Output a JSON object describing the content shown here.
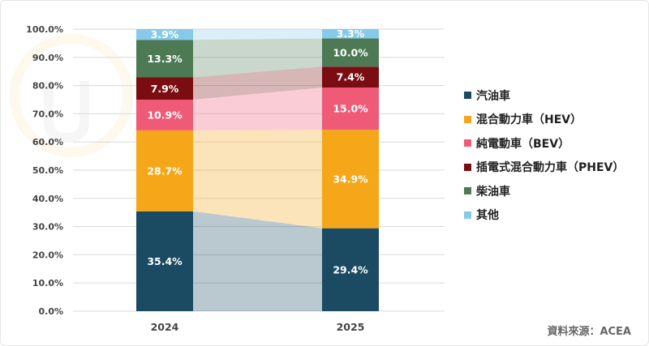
{
  "chart_data": {
    "type": "bar",
    "stacked": true,
    "percent": true,
    "categories": [
      "2024",
      "2025"
    ],
    "series": [
      {
        "name": "汽油車",
        "color": "#1b4a63",
        "values": [
          35.4,
          29.4
        ],
        "labels": [
          "35.4%",
          "29.4%"
        ]
      },
      {
        "name": "混合動力車（HEV）",
        "color": "#f5a719",
        "values": [
          28.7,
          34.9
        ],
        "labels": [
          "28.7%",
          "34.9%"
        ]
      },
      {
        "name": "純電動車（BEV）",
        "color": "#ef5a77",
        "values": [
          10.9,
          15.0
        ],
        "labels": [
          "10.9%",
          "15.0%"
        ]
      },
      {
        "name": "插電式混合動力車（PHEV）",
        "color": "#7b0d12",
        "values": [
          7.9,
          7.4
        ],
        "labels": [
          "7.9%",
          "7.4%"
        ]
      },
      {
        "name": "柴油車",
        "color": "#4d7a55",
        "values": [
          13.3,
          10.0
        ],
        "labels": [
          "13.3%",
          "10.0%"
        ]
      },
      {
        "name": "其他",
        "color": "#86c9e9",
        "values": [
          3.9,
          3.3
        ],
        "labels": [
          "3.9%",
          "3.3%"
        ]
      }
    ],
    "y_ticks": [
      "0.0%",
      "10.0%",
      "20.0%",
      "30.0%",
      "40.0%",
      "50.0%",
      "60.0%",
      "70.0%",
      "80.0%",
      "90.0%",
      "100.0%"
    ],
    "ylim": [
      0,
      100
    ],
    "grid": true,
    "legend": "right",
    "title": "",
    "xlabel": "",
    "ylabel": ""
  },
  "source": "資料來源：ACEA"
}
